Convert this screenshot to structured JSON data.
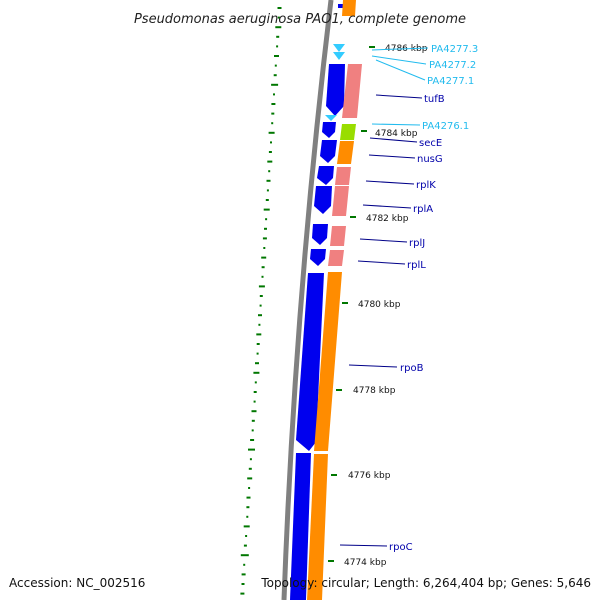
{
  "title": "Pseudomonas aeruginosa PAO1, complete genome",
  "footer": {
    "accession": "Accession: NC_002516",
    "summary": "Topology: circular; Length: 6,264,404 bp; Genes: 5,646"
  },
  "colors": {
    "backbone": "#808080",
    "cds": "#0000ee",
    "trna": "#33ccff",
    "gene_pink": "#f08080",
    "gene_orange": "#ff8c00",
    "gene_green": "#99dd00",
    "gc_ticks": "#007700",
    "label_dark": "#0000aa",
    "label_light": "#22bbee",
    "leader": "#000088"
  },
  "scale_labels": [
    {
      "id": "4786",
      "text": "4786 kbp"
    },
    {
      "id": "4784",
      "text": "4784 kbp"
    },
    {
      "id": "4782",
      "text": "4782 kbp"
    },
    {
      "id": "4780",
      "text": "4780 kbp"
    },
    {
      "id": "4778",
      "text": "4778 kbp"
    },
    {
      "id": "4776",
      "text": "4776 kbp"
    },
    {
      "id": "4774",
      "text": "4774 kbp"
    }
  ],
  "gene_labels": [
    {
      "id": "pa4277-3",
      "text": "PA4277.3",
      "tone": "light"
    },
    {
      "id": "pa4277-2",
      "text": "PA4277.2",
      "tone": "light"
    },
    {
      "id": "pa4277-1",
      "text": "PA4277.1",
      "tone": "light"
    },
    {
      "id": "tufb",
      "text": "tufB",
      "tone": "dark"
    },
    {
      "id": "pa4276-1",
      "text": "PA4276.1",
      "tone": "light"
    },
    {
      "id": "sece",
      "text": "secE",
      "tone": "dark"
    },
    {
      "id": "nusg",
      "text": "nusG",
      "tone": "dark"
    },
    {
      "id": "rplk",
      "text": "rplK",
      "tone": "dark"
    },
    {
      "id": "rpla",
      "text": "rplA",
      "tone": "dark"
    },
    {
      "id": "rplj",
      "text": "rplJ",
      "tone": "dark"
    },
    {
      "id": "rpll",
      "text": "rplL",
      "tone": "dark"
    },
    {
      "id": "rpob",
      "text": "rpoB",
      "tone": "dark"
    },
    {
      "id": "rpoc",
      "text": "rpoC",
      "tone": "dark"
    }
  ]
}
